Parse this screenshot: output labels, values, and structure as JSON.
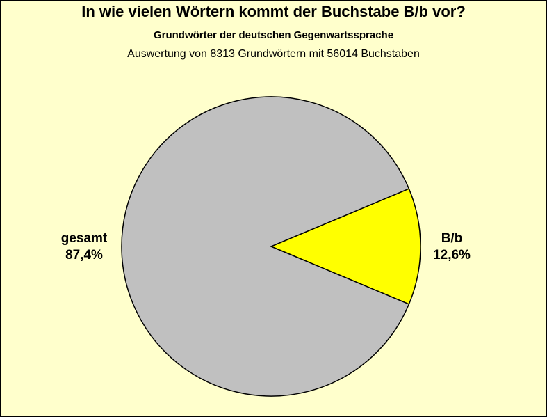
{
  "chart_data": {
    "type": "pie",
    "title": "In wie vielen Wörtern kommt der Buchstabe B/b vor?",
    "subtitle": "Grundwörter der deutschen Gegenwartssprache",
    "subtitle2": "Auswertung von 8313 Grundwörtern mit 56014 Buchstaben",
    "slices": [
      {
        "label": "B/b",
        "value": 12.6,
        "value_label": "12,6%",
        "color": "#ffff00"
      },
      {
        "label": "gesamt",
        "value": 87.4,
        "value_label": "87,4%",
        "color": "#c0c0c0"
      }
    ],
    "legend": "none"
  },
  "colors": {
    "background": "#ffffcc",
    "outline": "#000000"
  }
}
